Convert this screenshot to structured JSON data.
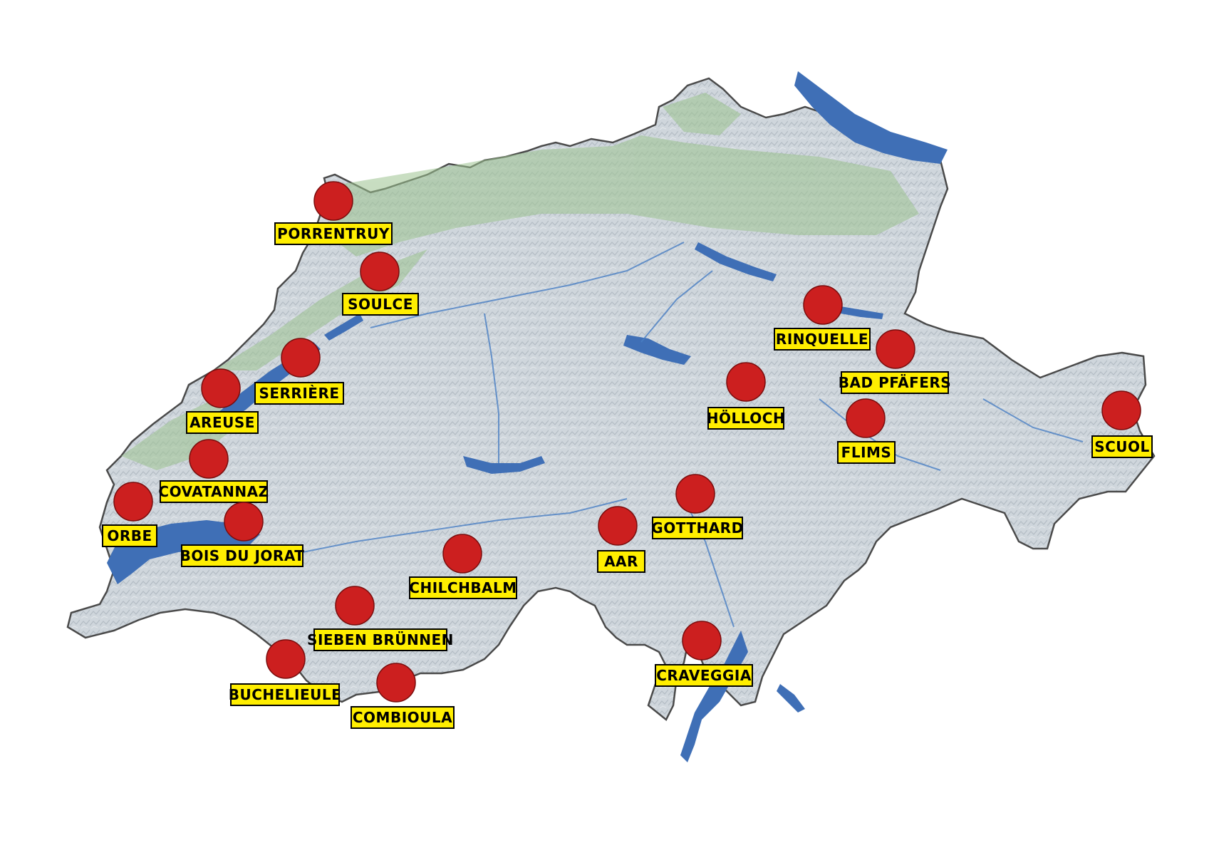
{
  "map": {
    "colors": {
      "background": "#ffffff",
      "land": "#cfd6dc",
      "land_relief": "#b9c1c8",
      "lowland_green": "#9cc38f",
      "lake": "#3f6fb6",
      "river": "#4a7fc4",
      "border": "#4a4a4a",
      "marker": "#cc1f1f",
      "label_fill": "#ffee00",
      "label_text": "#000000"
    },
    "markers": [
      {
        "id": "porrentruy",
        "label": "PORRENTRUY"
      },
      {
        "id": "soulce",
        "label": "SOULCE"
      },
      {
        "id": "serriere",
        "label": "SERRIÈRE"
      },
      {
        "id": "areuse",
        "label": "AREUSE"
      },
      {
        "id": "covatannaz",
        "label": "COVATANNAZ"
      },
      {
        "id": "orbe",
        "label": "ORBE"
      },
      {
        "id": "bois-du-jorat",
        "label": "BOIS DU JORAT"
      },
      {
        "id": "chilchbalm",
        "label": "CHILCHBALM"
      },
      {
        "id": "sieben-brunnen",
        "label": "SIEBEN BRÜNNEN"
      },
      {
        "id": "buchelieule",
        "label": "BUCHELIEULE"
      },
      {
        "id": "combioula",
        "label": "COMBIOULA"
      },
      {
        "id": "aar",
        "label": "AAR"
      },
      {
        "id": "gotthard",
        "label": "GOTTHARD"
      },
      {
        "id": "craveggia",
        "label": "CRAVEGGIA"
      },
      {
        "id": "holloch",
        "label": "HÖLLOCH"
      },
      {
        "id": "rinquelle",
        "label": "RINQUELLE"
      },
      {
        "id": "bad-pfafers",
        "label": "BAD PFÄFERS"
      },
      {
        "id": "flims",
        "label": "FLIMS"
      },
      {
        "id": "scuol",
        "label": "SCUOL"
      }
    ]
  }
}
